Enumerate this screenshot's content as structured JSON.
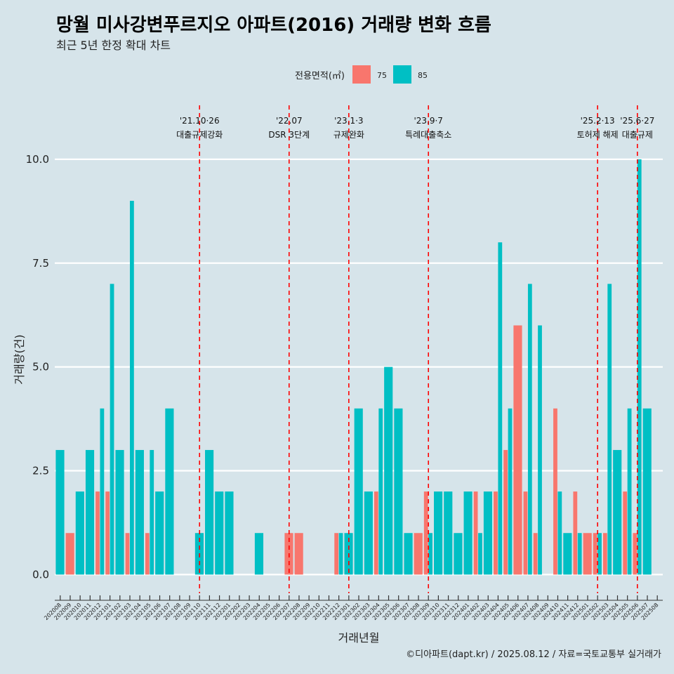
{
  "chart_data": {
    "type": "bar",
    "title": "망월 미사강변푸르지오 아파트(2016) 거래량 변화 흐름",
    "subtitle": "최근 5년 한정 확대 차트",
    "xlabel": "거래년월",
    "ylabel": "거래량(건)",
    "caption": "©디아파트(dapt.kr) / 2025.08.12 / 자료=국토교통부 실거래가",
    "ylim": [
      -0.45,
      11.3
    ],
    "yticks": [
      0.0,
      2.5,
      5.0,
      7.5,
      10.0
    ],
    "ytick_labels": [
      "0.0",
      "2.5",
      "5.0",
      "7.5",
      "10.0"
    ],
    "grid": "horizontal",
    "legend": {
      "title": "전용면적(㎡)",
      "position": "top",
      "items": [
        {
          "label": "75",
          "color": "#F8766D"
        },
        {
          "label": "85",
          "color": "#00BFC4"
        }
      ]
    },
    "months": [
      "202008",
      "202009",
      "202010",
      "202011",
      "202012",
      "202101",
      "202102",
      "202103",
      "202104",
      "202105",
      "202106",
      "202107",
      "202108",
      "202109",
      "202110",
      "202111",
      "202112",
      "202201",
      "202202",
      "202203",
      "202204",
      "202205",
      "202206",
      "202207",
      "202208",
      "202209",
      "202210",
      "202211",
      "202212",
      "202301",
      "202302",
      "202303",
      "202304",
      "202305",
      "202306",
      "202307",
      "202308",
      "202309",
      "202310",
      "202311",
      "202312",
      "202401",
      "202402",
      "202403",
      "202404",
      "202405",
      "202406",
      "202407",
      "202408",
      "202409",
      "202410",
      "202411",
      "202412",
      "202501",
      "202502",
      "202503",
      "202504",
      "202505",
      "202506",
      "202507",
      "202508"
    ],
    "series": [
      {
        "name": "75",
        "color": "#F8766D",
        "values": [
          0,
          1,
          0,
          0,
          2,
          2,
          0,
          1,
          0,
          1,
          0,
          0,
          0,
          0,
          0,
          0,
          0,
          0,
          0,
          0,
          0,
          0,
          0,
          1,
          1,
          0,
          0,
          0,
          1,
          0,
          0,
          0,
          2,
          0,
          0,
          0,
          1,
          2,
          0,
          0,
          0,
          0,
          2,
          0,
          2,
          3,
          6,
          2,
          1,
          0,
          4,
          0,
          2,
          1,
          1,
          1,
          0,
          2,
          1,
          0,
          0
        ]
      },
      {
        "name": "85",
        "color": "#00BFC4",
        "values": [
          3,
          0,
          2,
          3,
          4,
          7,
          3,
          9,
          3,
          3,
          2,
          4,
          0,
          0,
          1,
          3,
          2,
          2,
          0,
          0,
          1,
          0,
          0,
          0,
          0,
          0,
          0,
          0,
          1,
          1,
          4,
          2,
          4,
          5,
          4,
          1,
          0,
          1,
          2,
          2,
          1,
          2,
          1,
          2,
          8,
          4,
          0,
          7,
          6,
          0,
          2,
          1,
          1,
          0,
          1,
          7,
          3,
          4,
          10,
          4,
          0
        ]
      }
    ],
    "events": [
      {
        "date_line1": "'21.10·26",
        "date_line2": "대출규제강화",
        "month": "202110"
      },
      {
        "date_line1": "'22.07",
        "date_line2": "DSR 3단계",
        "month": "202207"
      },
      {
        "date_line1": "'23.1·3",
        "date_line2": "규제완화",
        "month": "202301"
      },
      {
        "date_line1": "'23.9·7",
        "date_line2": "특례대출축소",
        "month": "202309"
      },
      {
        "date_line1": "'25.2·13",
        "date_line2": "토허제 해제",
        "month": "202502"
      },
      {
        "date_line1": "'25.6·27",
        "date_line2": "대출규제",
        "month": "202506"
      }
    ]
  }
}
